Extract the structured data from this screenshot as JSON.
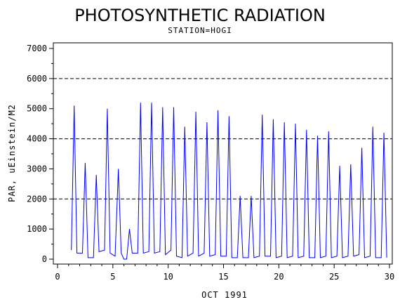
{
  "chart_data": {
    "type": "line",
    "title": "PHOTOSYNTHETIC RADIATION",
    "subtitle": "STATION=HOGI",
    "xlabel": "OCT 1991",
    "ylabel": "PAR, uEinstein/M2",
    "xlim": [
      0,
      30
    ],
    "ylim": [
      0,
      7000
    ],
    "xticks": [
      0,
      5,
      10,
      15,
      20,
      25,
      30
    ],
    "yticks": [
      0,
      1000,
      2000,
      3000,
      4000,
      5000,
      6000,
      7000
    ],
    "reference_lines": [
      2000,
      4000,
      6000
    ],
    "grid": false,
    "legend": "none",
    "series": [
      {
        "color": "#0000ff",
        "points": [
          [
            1.25,
            300
          ],
          [
            1.5,
            5100
          ],
          [
            1.75,
            200
          ],
          [
            2.25,
            200
          ],
          [
            2.5,
            3200
          ],
          [
            2.75,
            50
          ],
          [
            3.25,
            50
          ],
          [
            3.5,
            2800
          ],
          [
            3.75,
            250
          ],
          [
            4.25,
            300
          ],
          [
            4.5,
            5000
          ],
          [
            4.75,
            200
          ],
          [
            5.2,
            100
          ],
          [
            5.5,
            3000
          ],
          [
            5.75,
            200
          ],
          [
            6.0,
            0
          ],
          [
            6.25,
            0
          ],
          [
            6.5,
            1000
          ],
          [
            6.75,
            200
          ],
          [
            7.25,
            200
          ],
          [
            7.5,
            5200
          ],
          [
            7.75,
            200
          ],
          [
            8.25,
            250
          ],
          [
            8.5,
            5200
          ],
          [
            8.75,
            200
          ],
          [
            9.25,
            250
          ],
          [
            9.5,
            5050
          ],
          [
            9.75,
            150
          ],
          [
            10.25,
            300
          ],
          [
            10.5,
            5050
          ],
          [
            10.75,
            100
          ],
          [
            11.25,
            50
          ],
          [
            11.5,
            4400
          ],
          [
            11.75,
            100
          ],
          [
            12.25,
            200
          ],
          [
            12.5,
            4900
          ],
          [
            12.75,
            100
          ],
          [
            13.25,
            200
          ],
          [
            13.5,
            4550
          ],
          [
            13.75,
            100
          ],
          [
            14.25,
            150
          ],
          [
            14.5,
            4950
          ],
          [
            14.75,
            100
          ],
          [
            15.25,
            100
          ],
          [
            15.5,
            4750
          ],
          [
            15.75,
            50
          ],
          [
            16.25,
            50
          ],
          [
            16.5,
            2100
          ],
          [
            16.75,
            50
          ],
          [
            17.25,
            50
          ],
          [
            17.5,
            2100
          ],
          [
            17.75,
            50
          ],
          [
            18.25,
            100
          ],
          [
            18.5,
            4800
          ],
          [
            18.75,
            100
          ],
          [
            19.25,
            100
          ],
          [
            19.5,
            4650
          ],
          [
            19.75,
            50
          ],
          [
            20.25,
            100
          ],
          [
            20.5,
            4550
          ],
          [
            20.75,
            50
          ],
          [
            21.25,
            100
          ],
          [
            21.5,
            4500
          ],
          [
            21.75,
            50
          ],
          [
            22.25,
            100
          ],
          [
            22.5,
            4300
          ],
          [
            22.75,
            50
          ],
          [
            23.25,
            50
          ],
          [
            23.5,
            4100
          ],
          [
            23.75,
            50
          ],
          [
            24.25,
            100
          ],
          [
            24.5,
            4250
          ],
          [
            24.75,
            50
          ],
          [
            25.25,
            100
          ],
          [
            25.5,
            3100
          ],
          [
            25.75,
            50
          ],
          [
            26.25,
            100
          ],
          [
            26.5,
            3150
          ],
          [
            26.75,
            100
          ],
          [
            27.25,
            150
          ],
          [
            27.5,
            3700
          ],
          [
            27.75,
            50
          ],
          [
            28.25,
            100
          ],
          [
            28.5,
            4400
          ],
          [
            28.75,
            50
          ],
          [
            29.25,
            50
          ],
          [
            29.5,
            4200
          ],
          [
            29.75,
            50
          ]
        ]
      }
    ]
  }
}
